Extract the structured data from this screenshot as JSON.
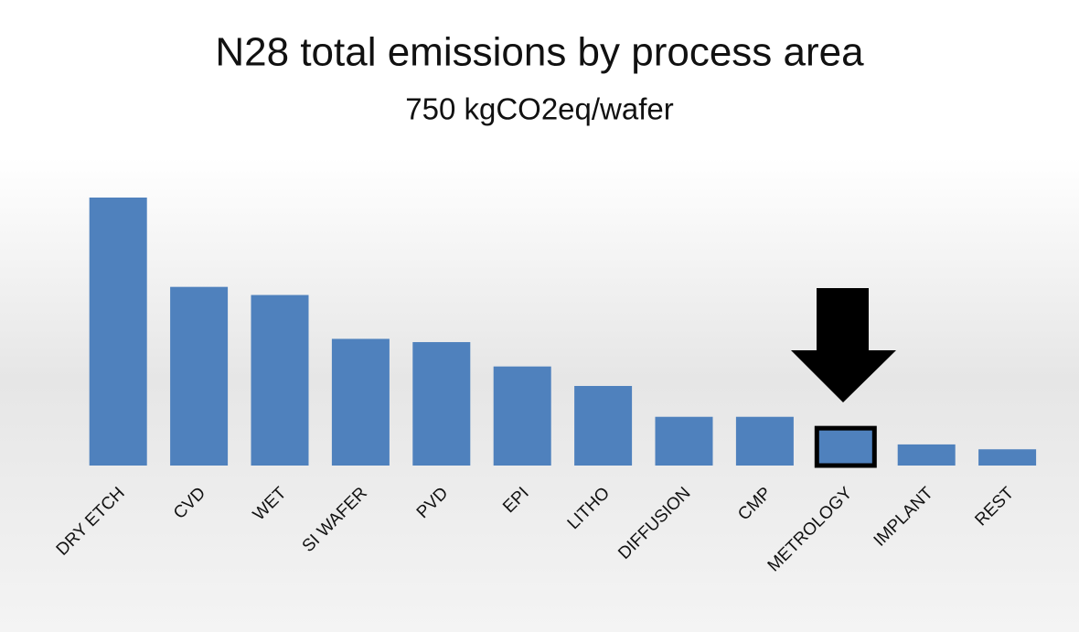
{
  "chart_data": {
    "type": "bar",
    "title": "N28 total emissions by process area",
    "subtitle": "750 kgCO2eq/wafer",
    "categories": [
      "DRY ETCH",
      "CVD",
      "WET",
      "SI WAFER",
      "PVD",
      "EPI",
      "LITHO",
      "DIFFUSION",
      "CMP",
      "METROLOGY",
      "IMPLANT",
      "REST"
    ],
    "values": [
      165,
      110,
      105,
      78,
      76,
      61,
      49,
      30,
      30,
      23,
      13,
      10
    ],
    "color": "#4f81bd",
    "highlight": "METROLOGY"
  }
}
